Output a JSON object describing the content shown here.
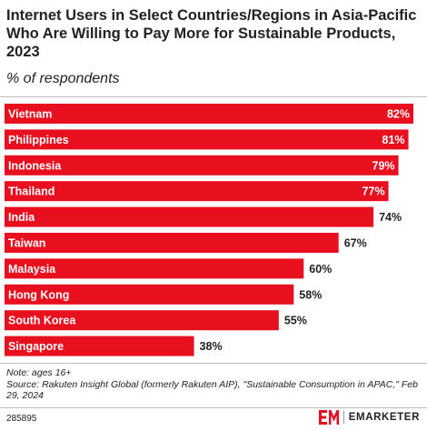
{
  "header": {
    "title": "Internet Users in Select Countries/Regions in Asia-Pacific Who Are Willing to Pay More for Sustainable Products, 2023",
    "subtitle": "% of respondents"
  },
  "chart_data": {
    "type": "bar",
    "orientation": "horizontal",
    "categories": [
      "Vietnam",
      "Philippines",
      "Indonesia",
      "Thailand",
      "India",
      "Taiwan",
      "Malaysia",
      "Hong Kong",
      "South Korea",
      "Singapore"
    ],
    "values": [
      82,
      81,
      79,
      77,
      74,
      67,
      60,
      58,
      55,
      38
    ],
    "value_labels": [
      "82%",
      "81%",
      "79%",
      "77%",
      "74%",
      "67%",
      "60%",
      "58%",
      "55%",
      "38%"
    ],
    "xlim": [
      0,
      84
    ],
    "bar_color": "#e8101e",
    "label_inside_color": "#ffffff",
    "label_outside_color": "#222222",
    "grid": false
  },
  "footer": {
    "note": "Note: ages 16+",
    "source": "Source: Rakuten Insight Global (formerly Rakuten AIP), \"Sustainable Consumption in APAC,\" Feb 29, 2024",
    "chart_id": "285895",
    "brand": "EMARKETER",
    "brand_color": "#e8101e"
  }
}
